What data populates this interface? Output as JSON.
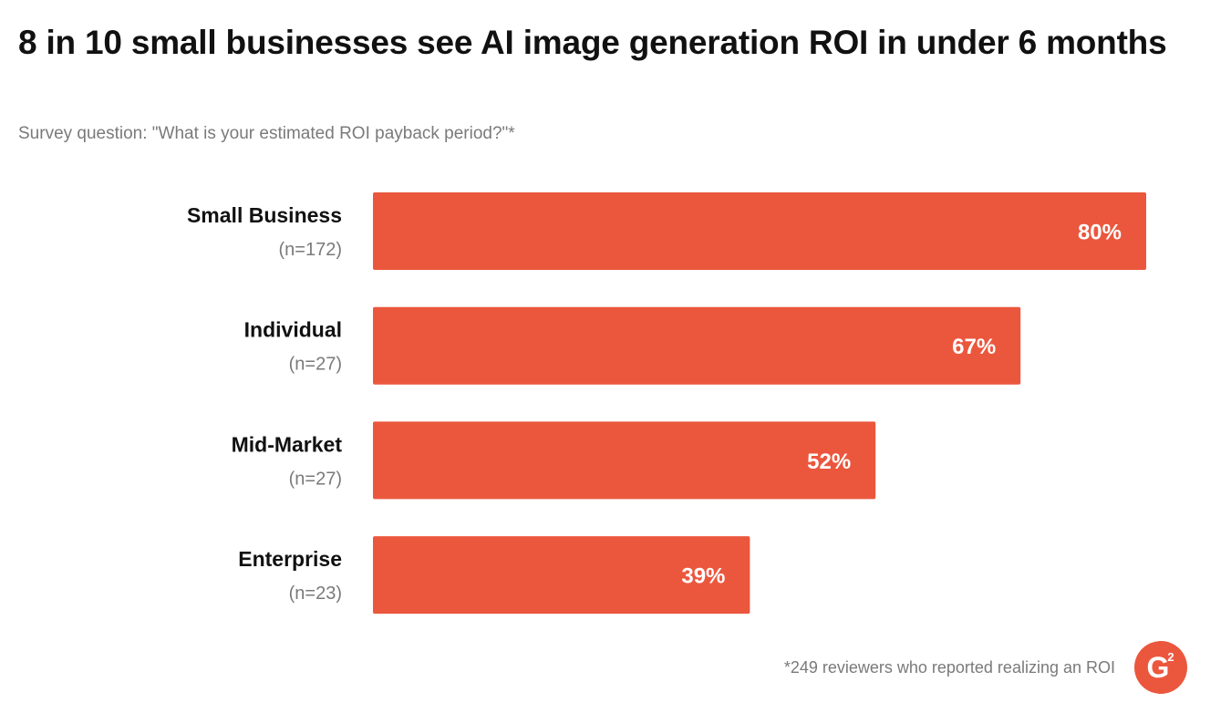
{
  "header": {
    "title": "8 in 10 small businesses see AI image generation ROI in under 6 months",
    "subtitle": "Survey question: \"What is your estimated ROI payback period?\"*"
  },
  "footer": {
    "note": "*249 reviewers who reported realizing an ROI",
    "logo_text": "G",
    "logo_superscript": "2"
  },
  "colors": {
    "bar": "#EB573D",
    "bar_label": "#ffffff",
    "category_label": "#111111",
    "sample_label": "#7a7a7a",
    "logo": "#EB573D"
  },
  "chart_data": {
    "type": "bar",
    "orientation": "horizontal",
    "categories": [
      "Small Business",
      "Individual",
      "Mid-Market",
      "Enterprise"
    ],
    "sample_sizes": [
      "(n=172)",
      "(n=27)",
      "(n=27)",
      "(n=23)"
    ],
    "values": [
      80,
      67,
      52,
      39
    ],
    "value_labels": [
      "80%",
      "67%",
      "52%",
      "39%"
    ],
    "unit": "%",
    "title": "8 in 10 small businesses see AI image generation ROI in under 6 months",
    "xlabel": "",
    "ylabel": "",
    "xlim": [
      0,
      80
    ],
    "grid": false,
    "legend": "none"
  }
}
